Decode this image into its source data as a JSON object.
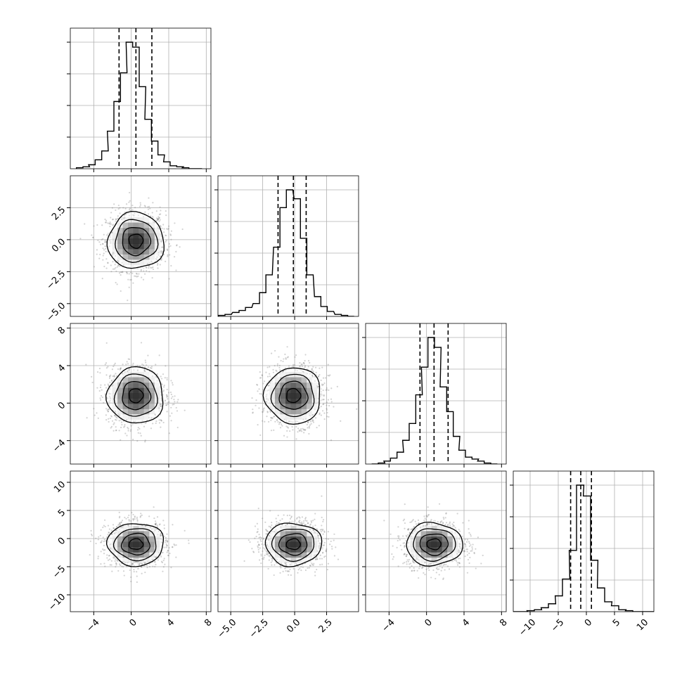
{
  "chart_data": {
    "type": "corner",
    "description_free": true,
    "n_params": 4,
    "grid": true,
    "params": [
      {
        "range": [
          -6.5,
          8.5
        ],
        "x_ticks": [
          -4,
          0,
          4,
          8
        ],
        "x_tick_labels": [
          "−4",
          "0",
          "4",
          "8"
        ],
        "y_ticks": [],
        "y_tick_labels": [],
        "quantiles": [
          -1.3,
          0.5,
          2.2
        ],
        "hist_mean": 0.5,
        "hist_sigma": 1.5
      },
      {
        "range": [
          -6.0,
          5.0
        ],
        "x_ticks": [
          -5.0,
          -2.5,
          0.0,
          2.5
        ],
        "x_tick_labels": [
          "−5.0",
          "−2.5",
          "0.0",
          "2.5"
        ],
        "y_ticks": [
          -5.0,
          -2.5,
          0.0,
          2.5
        ],
        "y_tick_labels": [
          "−5.0",
          "−2.5",
          "0.0",
          "2.5"
        ],
        "quantiles": [
          -1.3,
          -0.1,
          0.9
        ],
        "hist_mean": -0.1,
        "hist_sigma": 1.1
      },
      {
        "range": [
          -6.5,
          8.5
        ],
        "x_ticks": [
          -4,
          0,
          4,
          8
        ],
        "x_tick_labels": [
          "−4",
          "0",
          "4",
          "8"
        ],
        "y_ticks": [
          -4,
          0,
          4,
          8
        ],
        "y_tick_labels": [
          "−4",
          "0",
          "4",
          "8"
        ],
        "quantiles": [
          -0.7,
          0.8,
          2.3
        ],
        "hist_mean": 0.8,
        "hist_sigma": 1.5
      },
      {
        "range": [
          -13.0,
          12.0
        ],
        "x_ticks": [
          -10,
          -5,
          0,
          5,
          10
        ],
        "x_tick_labels": [
          "−10",
          "−5",
          "0",
          "5",
          "10"
        ],
        "y_ticks": [
          -10,
          -5,
          0,
          5,
          10
        ],
        "y_tick_labels": [
          "−10",
          "−5",
          "0",
          "5",
          "10"
        ],
        "quantiles": [
          -2.8,
          -1.0,
          0.9
        ],
        "hist_mean": -1.0,
        "hist_sigma": 1.9
      }
    ],
    "histograms": [
      {
        "param": 0,
        "bin_centers": [
          -5.5,
          -4.8,
          -4.2,
          -3.5,
          -2.8,
          -2.2,
          -1.5,
          -0.8,
          -0.2,
          0.5,
          1.2,
          1.8,
          2.5,
          3.2,
          3.8,
          4.5,
          5.2,
          5.8,
          6.5,
          7.2
        ],
        "counts": [
          1,
          2,
          4,
          9,
          18,
          38,
          68,
          97,
          128,
          123,
          83,
          50,
          28,
          14,
          7,
          3,
          2,
          1,
          0,
          0
        ]
      },
      {
        "param": 1,
        "bin_centers": [
          -5.7,
          -5.2,
          -4.6,
          -4.1,
          -3.6,
          -3.0,
          -2.5,
          -2.0,
          -1.4,
          -0.9,
          -0.4,
          0.2,
          0.7,
          1.2,
          1.8,
          2.3,
          2.8,
          3.4,
          3.9,
          4.4
        ],
        "counts": [
          1,
          2,
          4,
          6,
          9,
          13,
          24,
          42,
          70,
          110,
          128,
          119,
          79,
          42,
          20,
          10,
          5,
          2,
          1,
          0
        ]
      },
      {
        "param": 2,
        "bin_centers": [
          -5.5,
          -4.8,
          -4.2,
          -3.5,
          -2.8,
          -2.2,
          -1.5,
          -0.8,
          -0.2,
          0.5,
          1.2,
          1.8,
          2.5,
          3.2,
          3.8,
          4.5,
          5.2,
          5.8,
          6.5,
          7.2
        ],
        "counts": [
          0,
          1,
          3,
          6,
          12,
          24,
          41,
          70,
          98,
          128,
          118,
          78,
          53,
          28,
          14,
          7,
          5,
          3,
          1,
          0
        ]
      },
      {
        "param": 3,
        "bin_centers": [
          -12.4,
          -11.1,
          -9.9,
          -8.6,
          -7.4,
          -6.1,
          -4.9,
          -3.6,
          -2.4,
          -1.1,
          0.1,
          1.4,
          2.6,
          3.9,
          5.1,
          6.4,
          7.6,
          8.9,
          10.1,
          11.4
        ],
        "counts": [
          0,
          0,
          1,
          2,
          4,
          8,
          16,
          33,
          62,
          128,
          117,
          52,
          24,
          10,
          6,
          2,
          1,
          0,
          0,
          0
        ]
      }
    ],
    "pairs": [
      {
        "x_param": 0,
        "y_param": 1,
        "cx": 0.5,
        "cy": -0.1,
        "sx": 1.5,
        "sy": 1.1
      },
      {
        "x_param": 0,
        "y_param": 2,
        "cx": 0.5,
        "cy": 0.8,
        "sx": 1.5,
        "sy": 1.5
      },
      {
        "x_param": 1,
        "y_param": 2,
        "cx": -0.1,
        "cy": 0.8,
        "sx": 1.1,
        "sy": 1.5
      },
      {
        "x_param": 0,
        "y_param": 3,
        "cx": 0.5,
        "cy": -1.0,
        "sx": 1.5,
        "sy": 1.9
      },
      {
        "x_param": 1,
        "y_param": 3,
        "cx": -0.1,
        "cy": -1.0,
        "sx": 1.1,
        "sy": 1.9
      },
      {
        "x_param": 2,
        "y_param": 3,
        "cx": 0.8,
        "cy": -1.0,
        "sx": 1.5,
        "sy": 1.9
      }
    ],
    "contour_levels_sigma": [
      0.5,
      1.0,
      1.5,
      2.0
    ],
    "colors": {
      "line": "#000000",
      "points": "#808080",
      "grid": "#b0b0b0",
      "density_dark": "#000000"
    }
  }
}
